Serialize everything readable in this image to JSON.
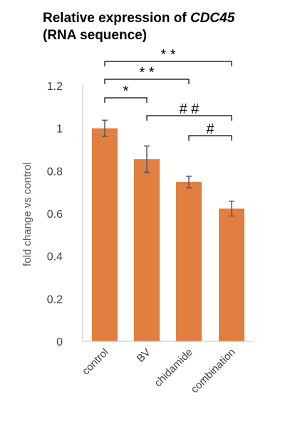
{
  "title": {
    "line1_prefix": "Relative expression of ",
    "line1_gene": "CDC45",
    "line2": "(RNA sequence)"
  },
  "chart_data": {
    "type": "bar",
    "categories": [
      "control",
      "BV",
      "chidamide",
      "combination"
    ],
    "values": [
      1.0,
      0.855,
      0.748,
      0.623
    ],
    "errors": [
      0.038,
      0.062,
      0.027,
      0.035
    ],
    "ylabel": "fold change vs control",
    "xlabel": "",
    "ylim": [
      0,
      1.2
    ],
    "yticks": [
      0,
      0.2,
      0.4,
      0.6,
      0.8,
      1.0,
      1.2
    ],
    "ytick_labels": [
      "0",
      "0.2",
      "0.4",
      "0.6",
      "0.8",
      "1",
      "1.2"
    ],
    "bar_color": "#e07f3f",
    "error_color": "#595959",
    "grid": false,
    "significance": [
      {
        "from": 0,
        "to": 3,
        "label": "* *"
      },
      {
        "from": 0,
        "to": 2,
        "label": "* *"
      },
      {
        "from": 0,
        "to": 1,
        "label": "*"
      },
      {
        "from": 1,
        "to": 3,
        "label": "# #"
      },
      {
        "from": 2,
        "to": 3,
        "label": "#"
      }
    ]
  }
}
